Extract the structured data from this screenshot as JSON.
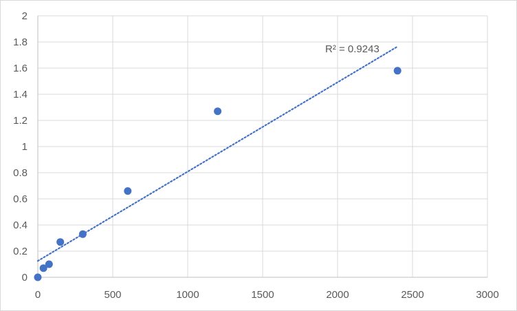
{
  "chart_data": {
    "type": "scatter",
    "title": "",
    "xlabel": "",
    "ylabel": "",
    "xlim": [
      0,
      3000
    ],
    "ylim": [
      0,
      2
    ],
    "x_ticks": [
      0,
      500,
      1000,
      1500,
      2000,
      2500,
      3000
    ],
    "y_ticks": [
      0,
      0.2,
      0.4,
      0.6,
      0.8,
      1,
      1.2,
      1.4,
      1.6,
      1.8,
      2
    ],
    "grid": true,
    "legend": "none",
    "series": [
      {
        "x": [
          0,
          37.5,
          75,
          150,
          300,
          600,
          1200,
          2400
        ],
        "y": [
          0,
          0.07,
          0.1,
          0.27,
          0.33,
          0.66,
          1.27,
          1.58
        ],
        "color": "#4472c4"
      }
    ],
    "trendline": {
      "type": "linear",
      "x_range": [
        0,
        2400
      ],
      "y_start": 0.125,
      "y_end": 1.765,
      "color": "#4472c4",
      "style": "dotted",
      "label": "R² = 0.9243"
    }
  }
}
